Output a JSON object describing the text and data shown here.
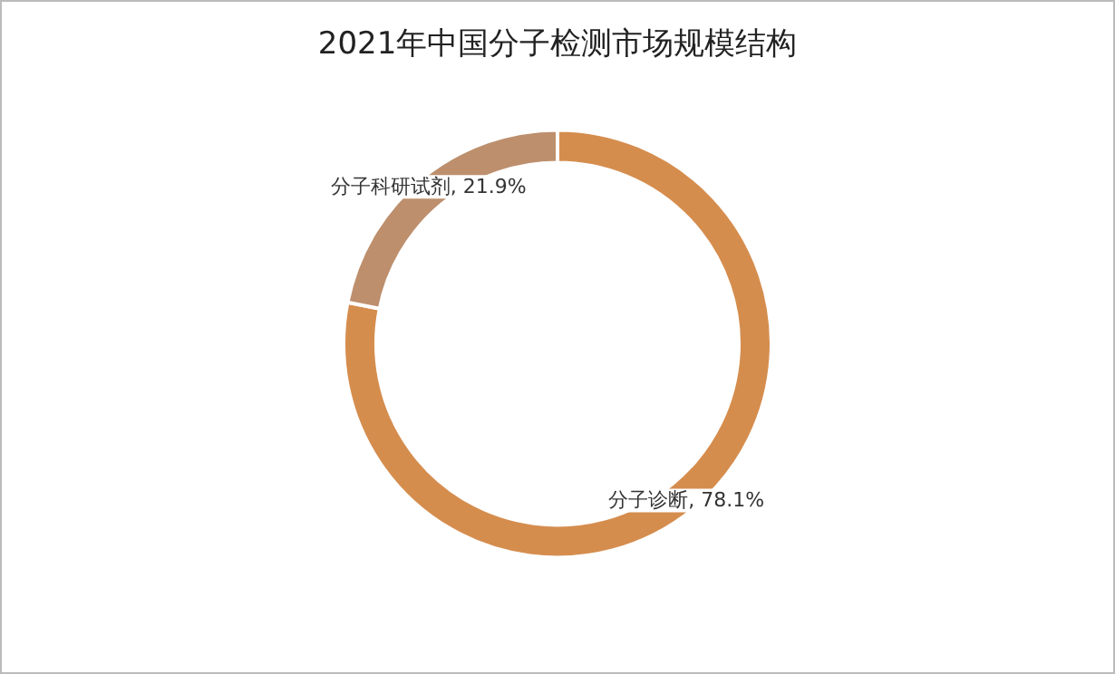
{
  "chart_data": {
    "type": "donut",
    "title": "2021年中国分子检测市场规模结构",
    "categories": [
      "分子诊断",
      "分子科研试剂"
    ],
    "values": [
      78.1,
      21.9
    ],
    "colors": [
      "#d58d4e",
      "#bd8f6d"
    ],
    "value_labels": [
      ", 78.1%",
      ", 21.9%"
    ],
    "legend": false
  }
}
